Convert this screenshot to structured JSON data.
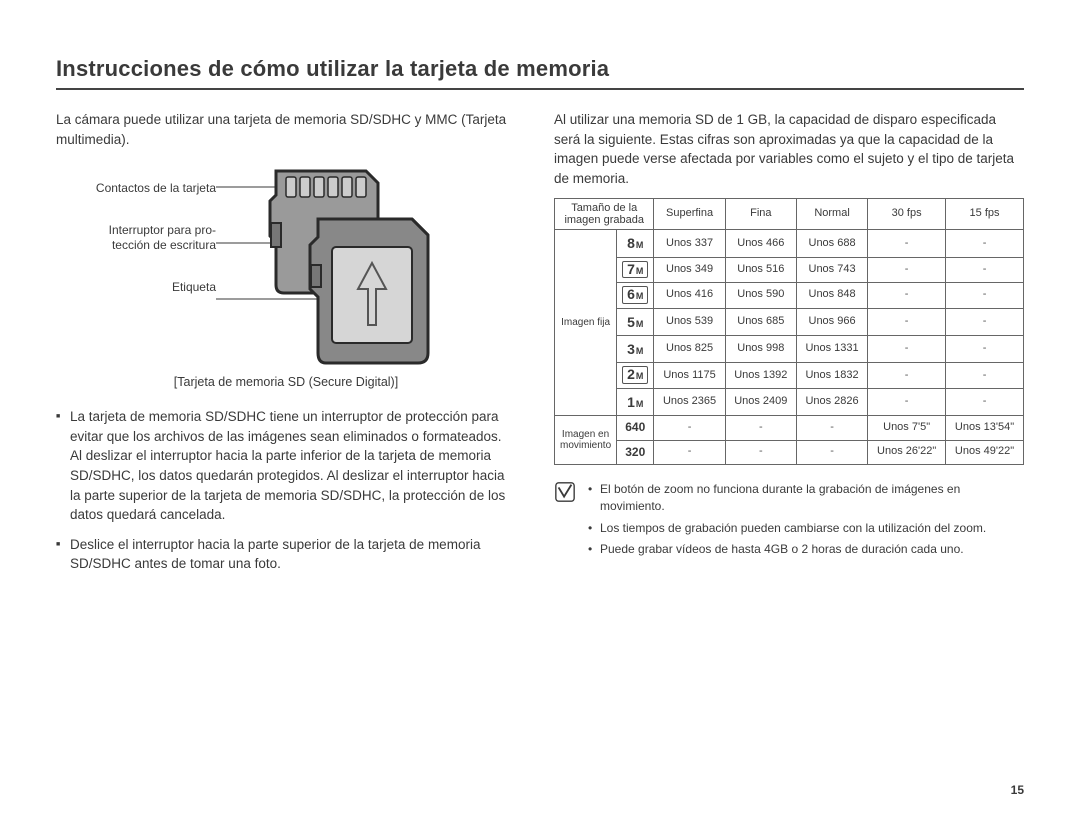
{
  "title": "Instrucciones de cómo utilizar la tarjeta de memoria",
  "intro_left": "La cámara puede utilizar una tarjeta de memoria SD/SDHC y MMC (Tarjeta multimedia).",
  "labels": {
    "contacts": "Contactos de la tarjeta",
    "switch": "Interruptor para pro-\ntección de escritura",
    "label": "Etiqueta"
  },
  "diagram_caption": "[Tarjeta de memoria SD (Secure Digital)]",
  "left_bullets": [
    "La tarjeta de memoria SD/SDHC tiene un interruptor de protección para evitar que los archivos de las imágenes sean eliminados o formateados. Al deslizar el interruptor hacia la parte inferior de la tarjeta de memoria SD/SDHC, los datos quedarán protegidos. Al deslizar el interruptor hacia la parte superior de la tarjeta de memoria SD/SDHC, la protección de los datos quedará cancelada.",
    "Deslice el interruptor hacia la parte superior de la tarjeta de memoria SD/SDHC antes de tomar una foto."
  ],
  "intro_right": "Al utilizar una memoria SD de 1 GB, la capacidad de disparo especificada será la siguiente. Estas cifras son aproximadas ya que la capacidad de la imagen puede verse afectada por variables como el sujeto y el tipo de tarjeta de memoria.",
  "table": {
    "header": {
      "size": "Tamaño de la imagen grabada",
      "superfine": "Superfina",
      "fine": "Fina",
      "normal": "Normal",
      "fps30": "30 fps",
      "fps15": "15 fps"
    },
    "row_groups": {
      "still": "Imagen fija",
      "movie": "Imagen en movimiento"
    },
    "still_rows": [
      {
        "icon": {
          "n": "8",
          "m": "M",
          "box": false
        },
        "sf": "Unos 337",
        "f": "Unos 466",
        "n2": "Unos 688",
        "a": "-",
        "b": "-"
      },
      {
        "icon": {
          "n": "7",
          "m": "M",
          "box": true
        },
        "sf": "Unos 349",
        "f": "Unos 516",
        "n2": "Unos 743",
        "a": "-",
        "b": "-"
      },
      {
        "icon": {
          "n": "6",
          "m": "M",
          "box": true
        },
        "sf": "Unos 416",
        "f": "Unos 590",
        "n2": "Unos 848",
        "a": "-",
        "b": "-"
      },
      {
        "icon": {
          "n": "5",
          "m": "M",
          "box": false
        },
        "sf": "Unos 539",
        "f": "Unos 685",
        "n2": "Unos 966",
        "a": "-",
        "b": "-"
      },
      {
        "icon": {
          "n": "3",
          "m": "M",
          "box": false
        },
        "sf": "Unos 825",
        "f": "Unos 998",
        "n2": "Unos 1331",
        "a": "-",
        "b": "-"
      },
      {
        "icon": {
          "n": "2",
          "m": "M",
          "box": true
        },
        "sf": "Unos 1175",
        "f": "Unos 1392",
        "n2": "Unos 1832",
        "a": "-",
        "b": "-"
      },
      {
        "icon": {
          "n": "1",
          "m": "M",
          "box": false
        },
        "sf": "Unos 2365",
        "f": "Unos 2409",
        "n2": "Unos 2826",
        "a": "-",
        "b": "-"
      }
    ],
    "movie_rows": [
      {
        "label": "640",
        "sf": "-",
        "f": "-",
        "n2": "-",
        "a": "Unos 7'5\"",
        "b": "Unos 13'54\""
      },
      {
        "label": "320",
        "sf": "-",
        "f": "-",
        "n2": "-",
        "a": "Unos 26'22\"",
        "b": "Unos 49'22\""
      }
    ]
  },
  "notes": [
    "El botón de zoom no funciona durante la grabación de imágenes en movimiento.",
    "Los tiempos de grabación pueden cambiarse con la utilización del zoom.",
    "Puede grabar vídeos de hasta 4GB o 2 horas de duración cada uno."
  ],
  "page_number": "15",
  "colors": {
    "text": "#3a3a3a",
    "rule": "#444444",
    "border": "#666666",
    "card_fill": "#888888",
    "card_stroke": "#2a2a2a"
  }
}
